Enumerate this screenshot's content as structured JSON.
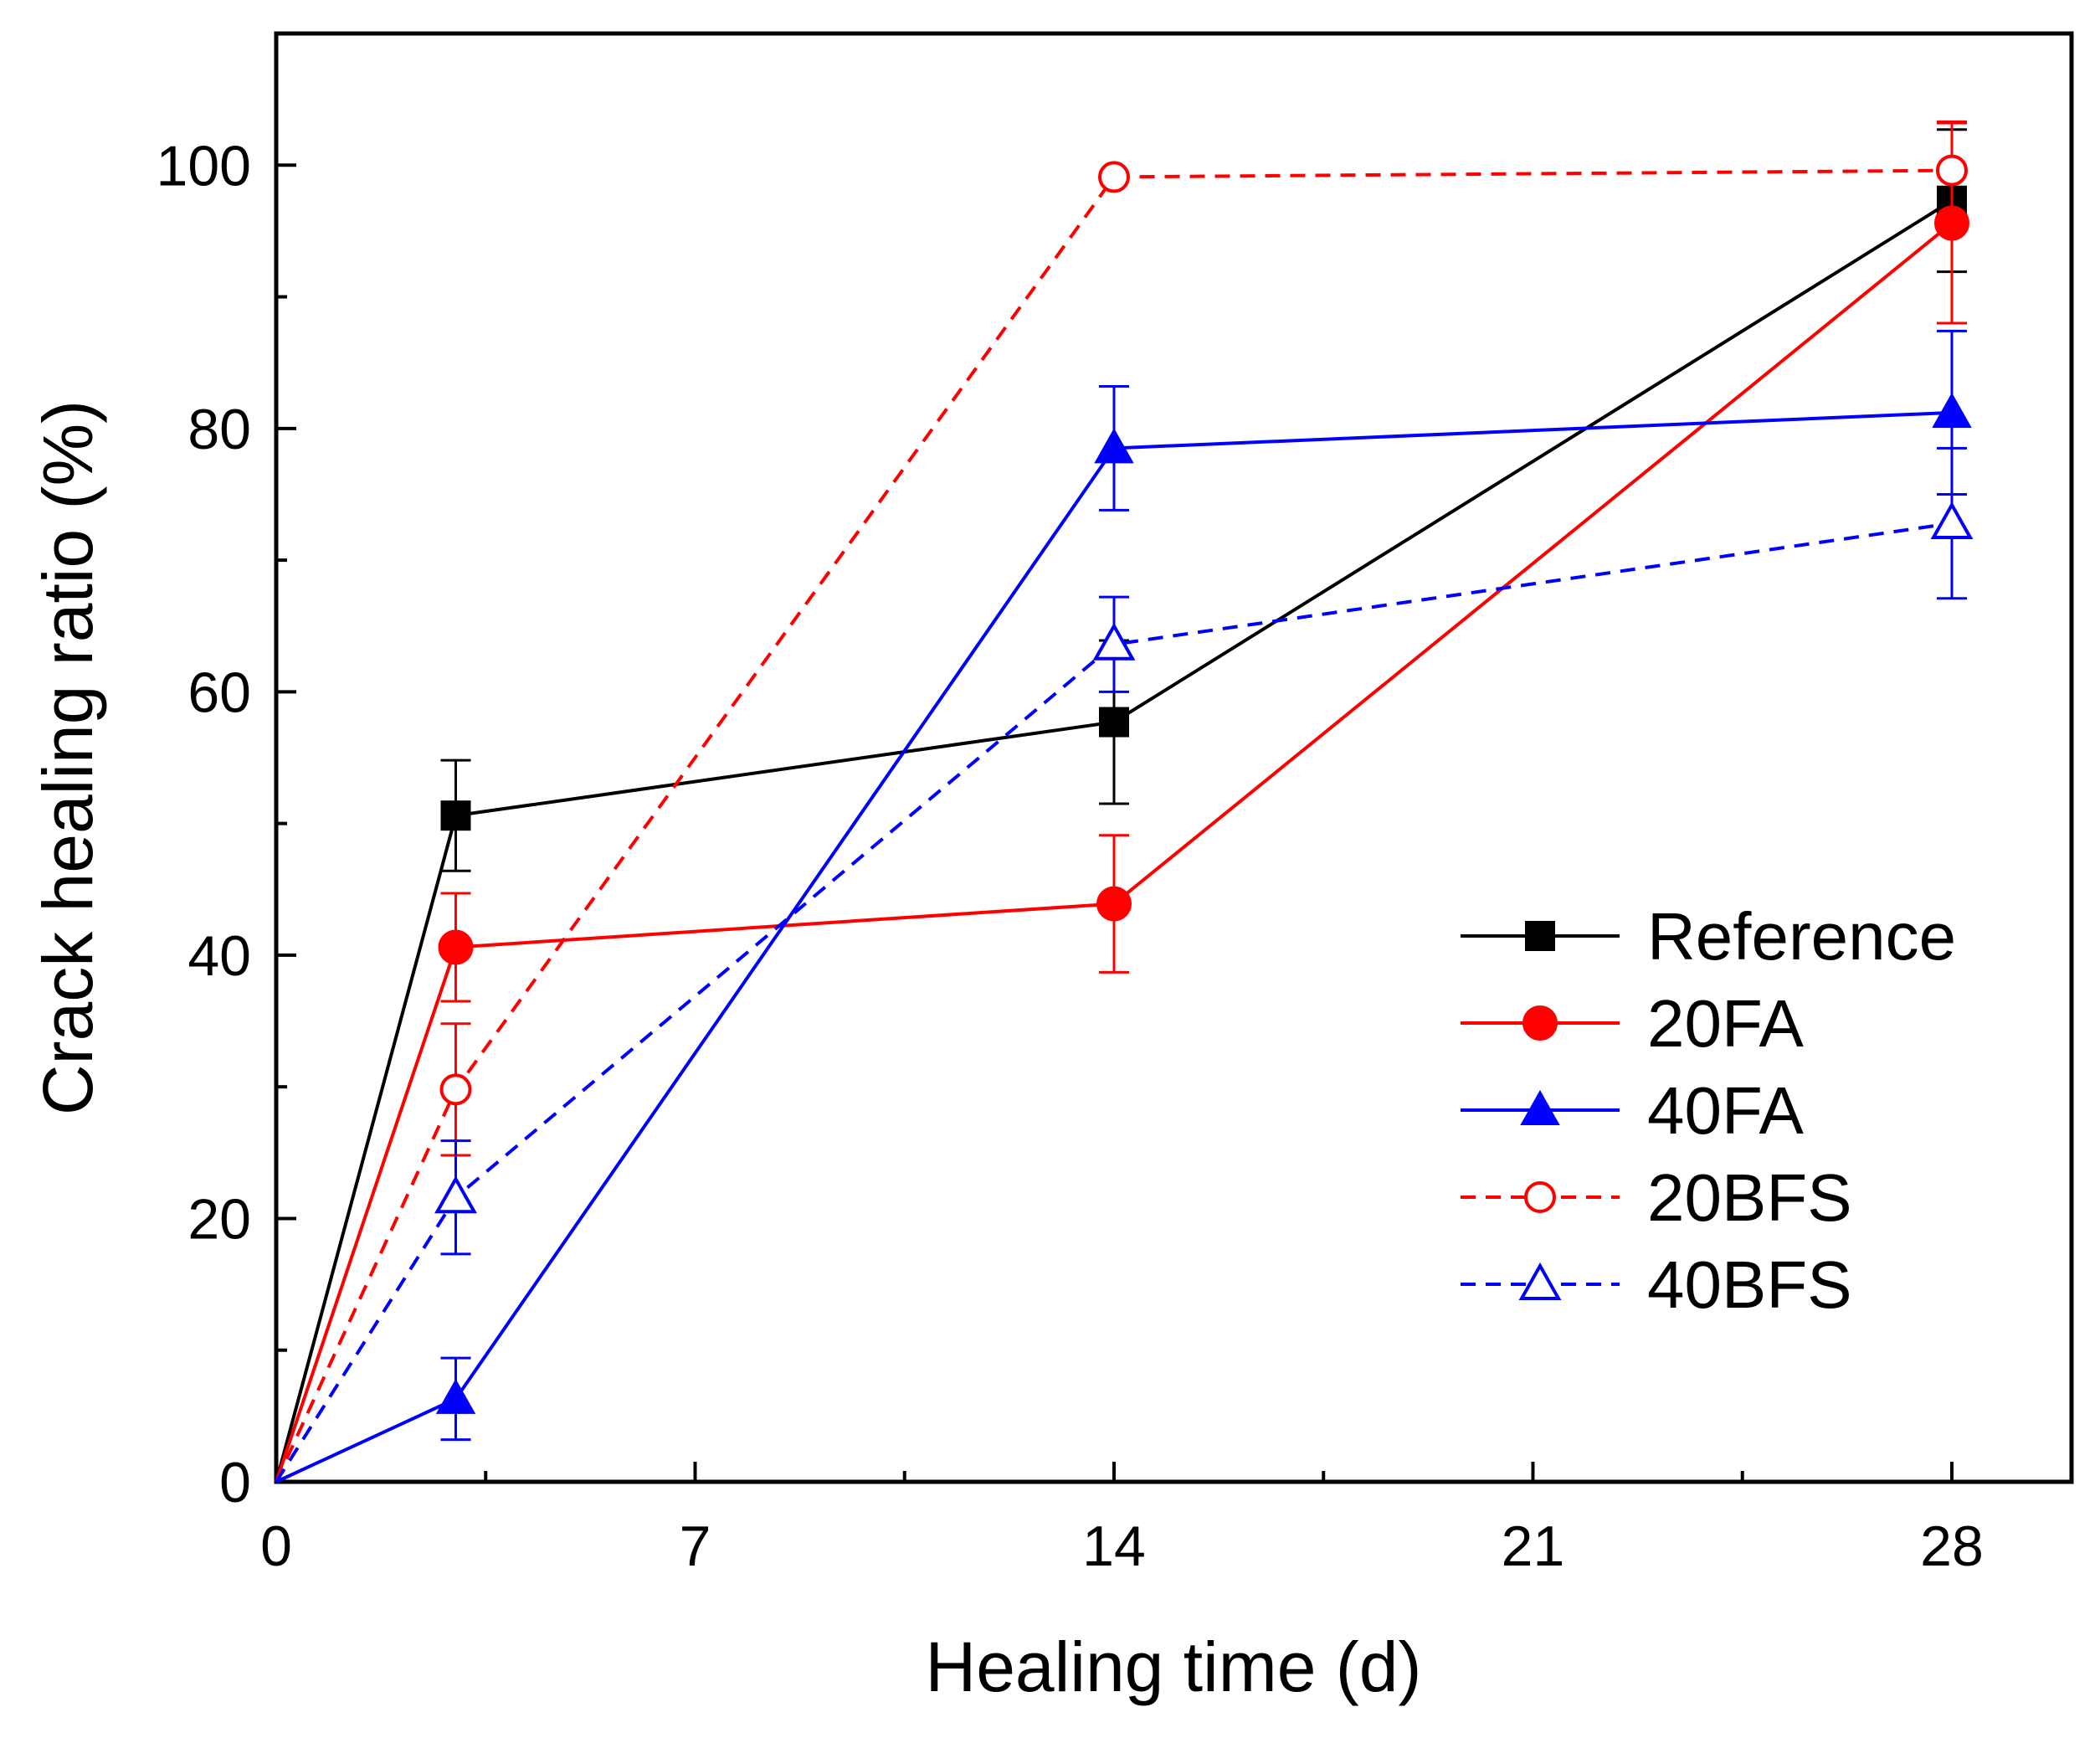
{
  "chart_data": {
    "type": "line",
    "title": "",
    "xlabel": "Healing time (d)",
    "ylabel": "Crack healing ratio (%)",
    "xlim": [
      0,
      30
    ],
    "ylim": [
      0,
      110
    ],
    "xticks": [
      0,
      7,
      14,
      21,
      28
    ],
    "yticks": [
      0,
      20,
      40,
      60,
      80,
      100
    ],
    "x_tick_labels": [
      "0",
      "7",
      "14",
      "21",
      "28"
    ],
    "y_tick_labels": [
      "0",
      "20",
      "40",
      "60",
      "80",
      "100"
    ],
    "grid": false,
    "legend_position": "right",
    "series": [
      {
        "name": "Reference",
        "color": "#000000",
        "line": "solid",
        "marker": "square",
        "filled": true,
        "points": [
          {
            "x": 0,
            "y": 0,
            "err": 0
          },
          {
            "x": 3,
            "y": 50.6,
            "err": 4.2
          },
          {
            "x": 14,
            "y": 57.7,
            "err": 6.2
          },
          {
            "x": 28,
            "y": 97.3,
            "err": 5.4
          }
        ]
      },
      {
        "name": "20FA",
        "color": "#ff0000",
        "line": "solid",
        "marker": "circle",
        "filled": true,
        "points": [
          {
            "x": 0,
            "y": 0,
            "err": 0
          },
          {
            "x": 3,
            "y": 40.6,
            "err": 4.1
          },
          {
            "x": 14,
            "y": 43.9,
            "err": 5.2
          },
          {
            "x": 28,
            "y": 95.6,
            "err": 7.6
          }
        ]
      },
      {
        "name": "40FA",
        "color": "#0000ff",
        "line": "solid",
        "marker": "triangle",
        "filled": true,
        "points": [
          {
            "x": 0,
            "y": 0,
            "err": 0
          },
          {
            "x": 3,
            "y": 6.3,
            "err": 3.1
          },
          {
            "x": 14,
            "y": 78.5,
            "err": 4.7
          },
          {
            "x": 28,
            "y": 81.2,
            "err": 6.2
          }
        ]
      },
      {
        "name": "20BFS",
        "color": "#ff0000",
        "line": "dashed",
        "marker": "circle",
        "filled": false,
        "points": [
          {
            "x": 0,
            "y": 0,
            "err": 0
          },
          {
            "x": 3,
            "y": 29.8,
            "err": 5.0
          },
          {
            "x": 14,
            "y": 99.1,
            "err": 0
          },
          {
            "x": 28,
            "y": 99.6,
            "err": 3.7
          }
        ]
      },
      {
        "name": "40BFS",
        "color": "#0000ff",
        "line": "dashed",
        "marker": "triangle",
        "filled": false,
        "points": [
          {
            "x": 0,
            "y": 0,
            "err": 0
          },
          {
            "x": 3,
            "y": 21.6,
            "err": 4.3
          },
          {
            "x": 14,
            "y": 63.6,
            "err": 3.6
          },
          {
            "x": 28,
            "y": 72.8,
            "err": 5.7
          }
        ]
      }
    ]
  }
}
